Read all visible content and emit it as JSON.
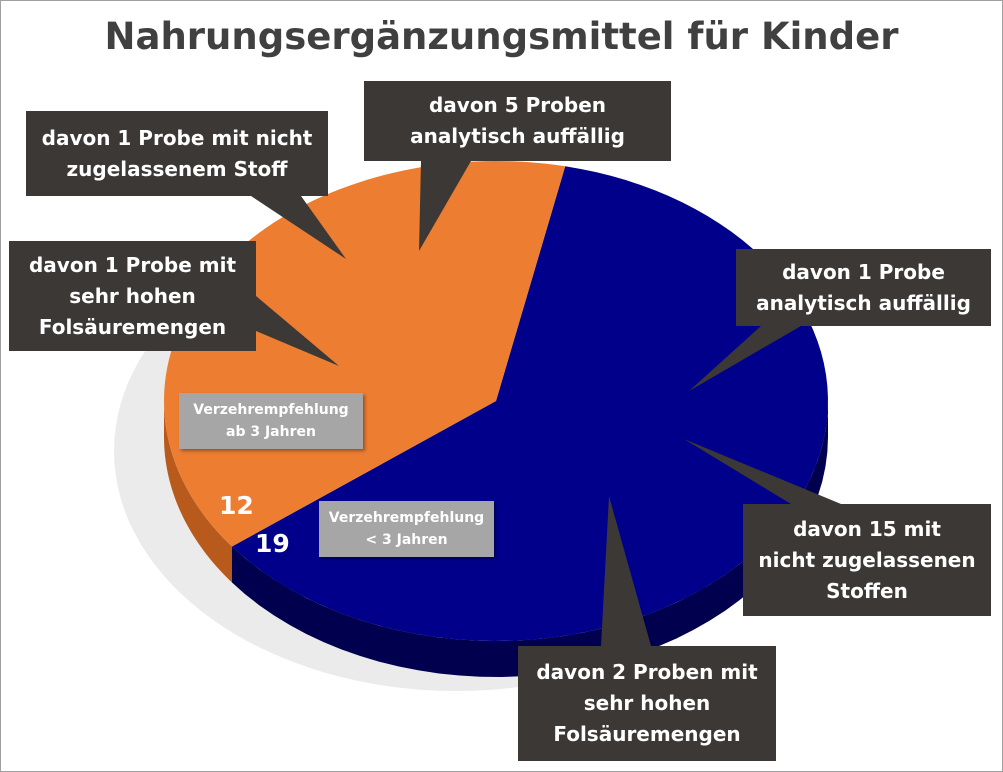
{
  "chart_data": {
    "type": "pie",
    "title": "Nahrungsergänzungsmittel für Kinder",
    "style": "3d",
    "slices": [
      {
        "label": "Verzehrempfehlung ab 3 Jahren",
        "value": 12,
        "color": "#ed7d31"
      },
      {
        "label": "Verzehrempfehlung < 3 Jahren",
        "value": 19,
        "color": "#00008b"
      }
    ],
    "annotations": [
      "davon 1 Probe mit nicht zugelassenem Stoff",
      "davon 5 Proben analytisch auffällig",
      "davon 1 Probe mit sehr hohen Folsäuremengen",
      "davon 1 Probe analytisch auffällig",
      "davon 15 mit nicht zugelassenen Stoffen",
      "davon 2 Proben mit sehr hohen Folsäuremengen"
    ]
  },
  "labels": {
    "slice0_line1": "Verzehrempfehlung",
    "slice0_line2": "ab 3 Jahren",
    "slice1_line1": "Verzehrempfehlung",
    "slice1_line2": "< 3 Jahren",
    "callouts": [
      [
        "davon 1 Probe mit nicht",
        "zugelassenem Stoff"
      ],
      [
        "davon 5 Proben",
        "analytisch auffällig"
      ],
      [
        "davon 1 Probe mit",
        "sehr hohen",
        "Folsäuremengen"
      ],
      [
        "davon 1 Probe",
        "analytisch auffällig"
      ],
      [
        "davon 15 mit",
        "nicht zugelassenen",
        "Stoffen"
      ],
      [
        "davon 2 Proben mit",
        "sehr hohen",
        "Folsäuremengen"
      ]
    ]
  },
  "colors": {
    "callout": "#3b3836",
    "title": "#404040",
    "label_box": "#a6a6a6"
  }
}
